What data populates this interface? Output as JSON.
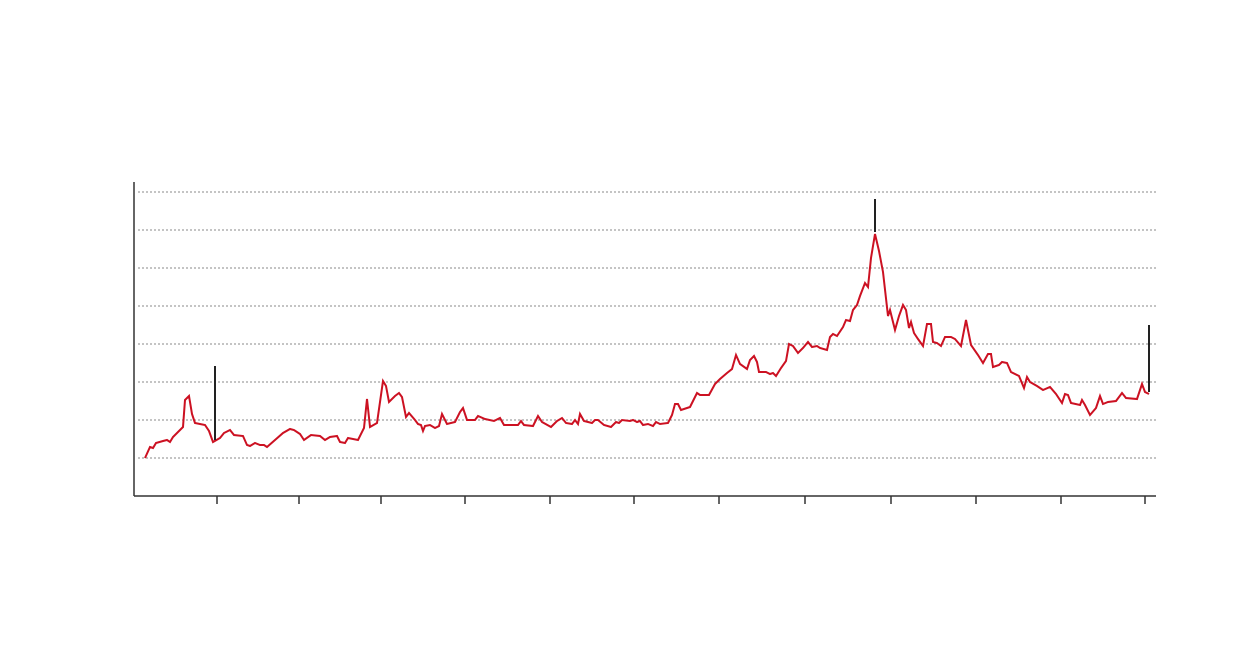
{
  "chart_data": {
    "type": "line",
    "color": "#cc1122",
    "grid": true,
    "xlim": [
      0,
      1022
    ],
    "xticks": [
      83,
      165,
      247,
      331,
      416,
      500,
      585,
      671,
      757,
      842,
      927,
      1011
    ],
    "ylim": [
      0,
      314
    ],
    "yticks": [
      38,
      76,
      114,
      152,
      190,
      228,
      266,
      304
    ],
    "x": [
      11,
      16,
      19,
      22,
      29,
      33,
      36,
      39,
      49,
      51,
      55,
      58,
      61,
      71,
      75,
      79,
      86,
      90,
      96,
      100,
      109,
      113,
      116,
      121,
      126,
      130,
      133,
      141,
      149,
      156,
      160,
      166,
      170,
      177,
      186,
      191,
      196,
      203,
      206,
      211,
      214,
      224,
      230,
      233,
      236,
      243,
      249,
      252,
      255,
      261,
      265,
      268,
      272,
      275,
      281,
      284,
      287,
      289,
      291,
      296,
      301,
      305,
      308,
      313,
      321,
      326,
      329,
      333,
      341,
      344,
      351,
      360,
      366,
      370,
      384,
      387,
      390,
      399,
      404,
      408,
      417,
      423,
      428,
      432,
      438,
      441,
      444,
      446,
      450,
      458,
      461,
      464,
      470,
      477,
      482,
      485,
      488,
      496,
      499,
      503,
      506,
      509,
      514,
      519,
      522,
      526,
      534,
      538,
      541,
      544,
      547,
      556,
      563,
      566,
      575,
      581,
      586,
      593,
      598,
      602,
      606,
      613,
      616,
      620,
      623,
      625,
      632,
      636,
      639,
      642,
      647,
      652,
      655,
      659,
      664,
      669,
      674,
      678,
      683,
      686,
      693,
      696,
      699,
      703,
      709,
      712,
      716,
      719,
      723,
      726,
      731,
      734,
      737,
      741,
      745,
      749,
      754,
      756,
      761,
      765,
      769,
      772,
      775,
      777,
      780,
      784,
      789,
      793,
      797,
      799,
      803,
      807,
      811,
      817,
      821,
      827,
      832,
      837,
      844,
      849,
      854,
      857,
      859,
      865,
      868,
      873,
      877,
      885,
      890,
      893,
      896,
      903,
      909,
      916,
      922,
      928,
      931,
      934,
      937,
      946,
      948,
      951,
      956,
      962,
      966,
      969,
      974,
      982,
      988,
      992,
      1003,
      1008,
      1011,
      1015
    ],
    "series": [
      {
        "values": [
          38,
          49,
          48,
          53,
          55,
          56,
          54,
          59,
          69,
          96,
          100,
          82,
          73,
          71,
          65,
          54,
          58,
          63,
          66,
          61,
          60,
          51,
          50,
          53,
          51,
          51,
          49,
          56,
          63,
          67,
          66,
          62,
          56,
          61,
          60,
          56,
          59,
          60,
          54,
          53,
          58,
          56,
          68,
          97,
          69,
          73,
          115,
          110,
          94,
          100,
          103,
          99,
          79,
          83,
          76,
          72,
          71,
          65,
          70,
          71,
          68,
          70,
          82,
          72,
          74,
          84,
          88,
          76,
          76,
          80,
          77,
          75,
          78,
          71,
          71,
          75,
          71,
          70,
          80,
          74,
          69,
          75,
          78,
          73,
          72,
          76,
          72,
          82,
          75,
          73,
          76,
          76,
          71,
          69,
          74,
          73,
          76,
          75,
          76,
          74,
          75,
          71,
          72,
          70,
          74,
          72,
          73,
          81,
          92,
          92,
          86,
          89,
          103,
          101,
          101,
          112,
          117,
          123,
          127,
          141,
          132,
          127,
          136,
          140,
          134,
          124,
          124,
          122,
          123,
          120,
          128,
          135,
          152,
          150,
          143,
          148,
          154,
          149,
          150,
          148,
          146,
          159,
          162,
          160,
          169,
          176,
          175,
          186,
          191,
          200,
          213,
          209,
          238,
          262,
          245,
          224,
          180,
          186,
          166,
          180,
          191,
          186,
          168,
          174,
          163,
          157,
          150,
          172,
          172,
          154,
          153,
          150,
          159,
          159,
          157,
          150,
          176,
          151,
          141,
          133,
          142,
          142,
          129,
          131,
          134,
          133,
          124,
          120,
          108,
          119,
          114,
          110,
          106,
          109,
          102,
          93,
          102,
          101,
          93,
          91,
          96,
          91,
          81,
          88,
          100,
          92,
          94,
          95,
          103,
          98,
          97,
          112,
          104,
          102
        ]
      }
    ],
    "markers": [
      {
        "x": 81,
        "y": [
          56,
          130
        ]
      },
      {
        "x": 741,
        "y": [
          264,
          297
        ]
      },
      {
        "x": 1015,
        "y": [
          104,
          171
        ]
      }
    ]
  }
}
